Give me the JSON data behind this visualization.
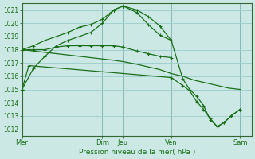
{
  "xlabel": "Pression niveau de la mer( hPa )",
  "ylim": [
    1011.5,
    1021.5
  ],
  "xlim": [
    0,
    10
  ],
  "yticks": [
    1012,
    1013,
    1014,
    1015,
    1016,
    1017,
    1018,
    1019,
    1020,
    1021
  ],
  "bg_color": "#cce8e4",
  "grid_color": "#99cccc",
  "line_color": "#1a6e1a",
  "day_labels": [
    "Mer",
    "Dim",
    "Jeu",
    "Ven",
    "Sam"
  ],
  "day_positions": [
    0.0,
    3.5,
    4.4,
    6.5,
    9.5
  ],
  "line1_curvy": {
    "x": [
      0.0,
      0.5,
      1.0,
      1.5,
      2.0,
      2.5,
      3.0,
      3.5,
      4.0,
      4.4,
      5.0,
      5.5,
      6.0,
      6.5
    ],
    "y": [
      1015.0,
      1016.6,
      1017.5,
      1018.3,
      1018.7,
      1019.0,
      1019.3,
      1020.0,
      1021.0,
      1021.3,
      1020.8,
      1019.9,
      1019.1,
      1018.7
    ]
  },
  "line2_flat": {
    "x": [
      0.0,
      0.5,
      1.0,
      1.5,
      2.0,
      2.5,
      3.0,
      3.5,
      4.0,
      4.4,
      5.0,
      5.5,
      6.0,
      6.5
    ],
    "y": [
      1018.0,
      1018.0,
      1018.0,
      1018.2,
      1018.3,
      1018.3,
      1018.3,
      1018.3,
      1018.3,
      1018.2,
      1017.9,
      1017.7,
      1017.5,
      1017.4
    ]
  },
  "line3_flat2": {
    "x": [
      0.0,
      0.5,
      1.0,
      1.5,
      2.0,
      2.5,
      3.0,
      3.5,
      4.0,
      4.4,
      5.0,
      5.5,
      6.0,
      6.5,
      7.0,
      7.5,
      8.0,
      8.5,
      9.0,
      9.5
    ],
    "y": [
      1018.0,
      1017.9,
      1017.8,
      1017.7,
      1017.6,
      1017.5,
      1017.4,
      1017.3,
      1017.2,
      1017.1,
      1016.9,
      1016.7,
      1016.5,
      1016.2,
      1016.0,
      1015.7,
      1015.5,
      1015.3,
      1015.1,
      1015.0
    ]
  },
  "line4_drop": {
    "x": [
      0.0,
      0.3,
      6.5,
      7.0,
      7.3,
      7.6,
      7.9,
      8.2,
      8.5,
      8.8,
      9.1,
      9.5
    ],
    "y": [
      1015.0,
      1016.8,
      1015.9,
      1015.3,
      1014.9,
      1014.1,
      1013.5,
      1012.8,
      1012.2,
      1012.5,
      1013.0,
      1013.5
    ]
  },
  "line5_main": {
    "x": [
      0.0,
      0.5,
      1.0,
      1.5,
      2.0,
      2.5,
      3.0,
      3.5,
      4.0,
      4.4,
      5.0,
      5.5,
      6.0,
      6.5,
      7.0,
      7.3,
      7.6,
      7.9,
      8.2,
      8.5,
      8.8,
      9.1,
      9.5
    ],
    "y": [
      1018.0,
      1018.3,
      1018.7,
      1019.0,
      1019.3,
      1019.7,
      1019.9,
      1020.3,
      1021.0,
      1021.3,
      1021.0,
      1020.5,
      1019.8,
      1018.7,
      1015.8,
      1015.0,
      1014.5,
      1013.8,
      1012.7,
      1012.2,
      1012.5,
      1013.0,
      1013.5
    ]
  }
}
